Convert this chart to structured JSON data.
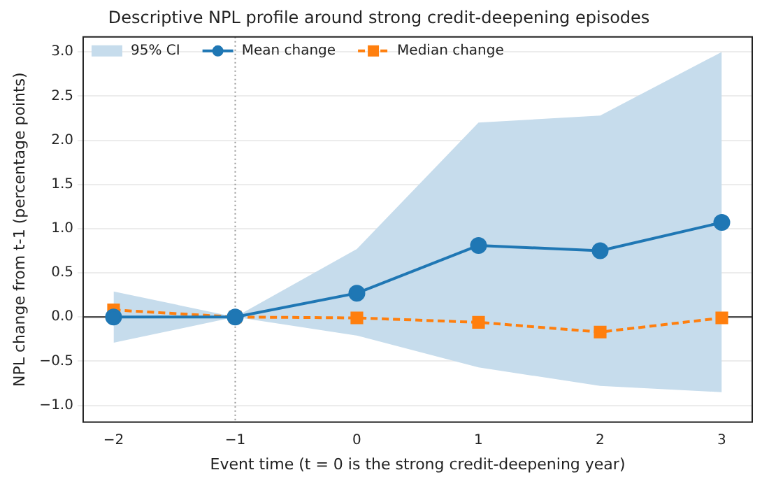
{
  "chart_data": {
    "type": "line",
    "title": "Descriptive NPL profile around strong credit-deepening episodes",
    "xlabel": "Event time (t = 0 is the strong credit-deepening year)",
    "ylabel": "NPL change from t-1 (percentage points)",
    "x": [
      -2,
      -1,
      0,
      1,
      2,
      3
    ],
    "series": [
      {
        "name": "95% CI",
        "type": "area",
        "color": "#c6dcec",
        "values": [
          null,
          null,
          null,
          null,
          null,
          null
        ],
        "lower": [
          -0.29,
          0,
          -0.21,
          -0.57,
          -0.78,
          -0.85
        ],
        "upper": [
          0.29,
          0,
          0.77,
          2.2,
          2.28,
          3.0
        ]
      },
      {
        "name": "Mean change",
        "color": "#1f77b4",
        "marker": "circle",
        "line_style": "solid",
        "values": [
          0.0,
          0,
          0.27,
          0.81,
          0.75,
          1.07
        ]
      },
      {
        "name": "Median change",
        "color": "#ff7f0e",
        "marker": "square",
        "line_style": "dashed",
        "values": [
          0.08,
          0,
          -0.01,
          -0.06,
          -0.17,
          -0.01
        ]
      }
    ],
    "xlim": [
      -2.25,
      3.25
    ],
    "xticks": [
      {
        "value": -2,
        "label": "−2"
      },
      {
        "value": -1,
        "label": "−1"
      },
      0,
      1,
      2,
      3
    ],
    "ylim": [
      -1.19,
      3.17
    ],
    "yticks": [
      {
        "value": -1,
        "label": "−1.0"
      },
      {
        "value": -0.5,
        "label": "−0.5"
      },
      {
        "value": 0,
        "label": "0.0"
      },
      {
        "value": 0.5,
        "label": "0.5"
      },
      {
        "value": 1,
        "label": "1.0"
      },
      {
        "value": 1.5,
        "label": "1.5"
      },
      {
        "value": 2,
        "label": "2.0"
      },
      {
        "value": 2.5,
        "label": "2.5"
      },
      {
        "value": 3,
        "label": "3.0"
      }
    ],
    "ref_lines": [
      {
        "axis": "y",
        "value": 0,
        "color": "#555555",
        "line_style": "solid"
      },
      {
        "axis": "x",
        "value": -1,
        "color": "#999999",
        "line_style": "dotted"
      }
    ],
    "grid": "y",
    "legend": "top left"
  }
}
